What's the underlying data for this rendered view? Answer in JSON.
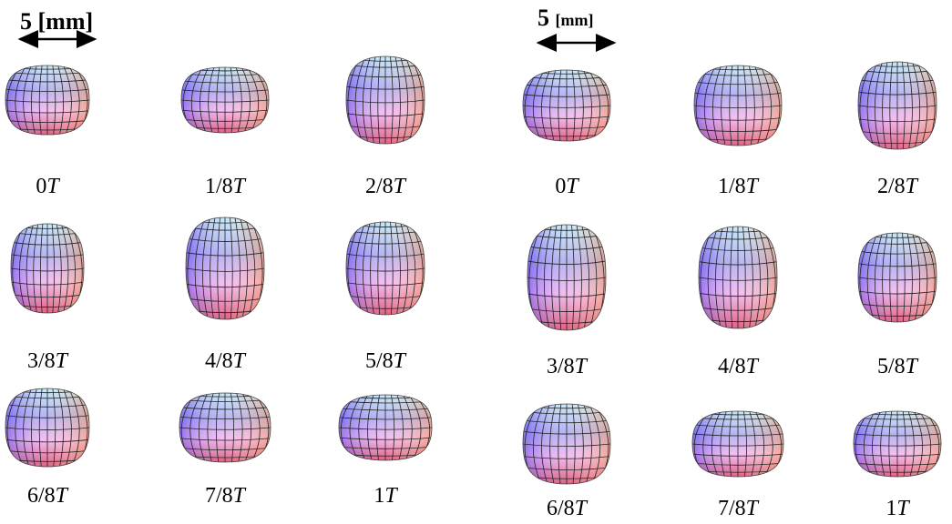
{
  "panels": [
    {
      "scale": {
        "value": "5",
        "unit": "[mm]"
      },
      "labels": [
        {
          "coef": "0",
          "symbol": "T"
        },
        {
          "coef": "1/8",
          "symbol": "T"
        },
        {
          "coef": "2/8",
          "symbol": "T"
        },
        {
          "coef": "3/8",
          "symbol": "T"
        },
        {
          "coef": "4/8",
          "symbol": "T"
        },
        {
          "coef": "5/8",
          "symbol": "T"
        },
        {
          "coef": "6/8",
          "symbol": "T"
        },
        {
          "coef": "7/8",
          "symbol": "T"
        },
        {
          "coef": "1",
          "symbol": "T"
        }
      ]
    },
    {
      "scale": {
        "value": "5",
        "unit": "[mm]"
      },
      "labels": [
        {
          "coef": "0",
          "symbol": "T"
        },
        {
          "coef": "1/8",
          "symbol": "T"
        },
        {
          "coef": "2/8",
          "symbol": "T"
        },
        {
          "coef": "3/8",
          "symbol": "T"
        },
        {
          "coef": "4/8",
          "symbol": "T"
        },
        {
          "coef": "5/8",
          "symbol": "T"
        },
        {
          "coef": "6/8",
          "symbol": "T"
        },
        {
          "coef": "7/8",
          "symbol": "T"
        },
        {
          "coef": "1",
          "symbol": "T"
        }
      ]
    }
  ]
}
